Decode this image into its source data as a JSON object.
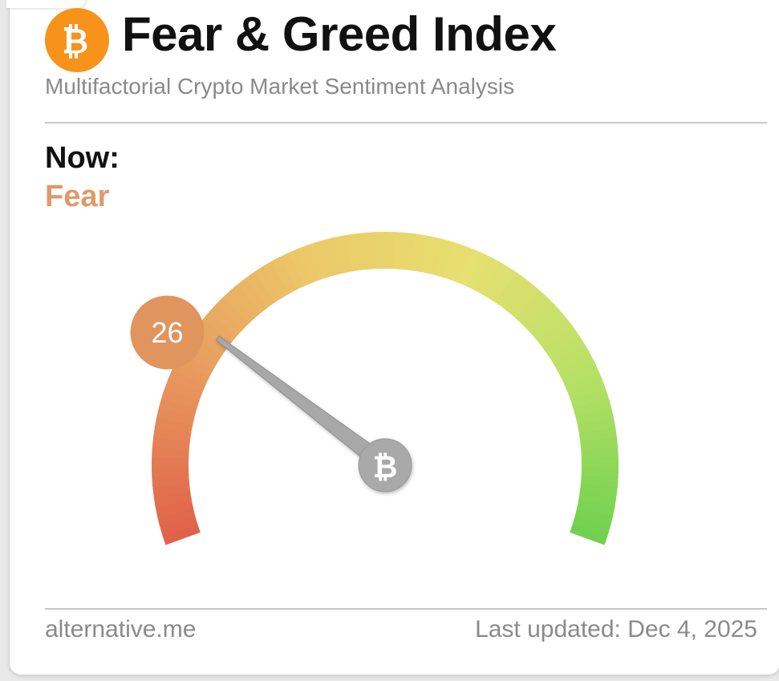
{
  "header": {
    "title": "Fear & Greed Index",
    "subtitle": "Multifactorial Crypto Market Sentiment Analysis",
    "logo_icon": "bitcoin-icon",
    "logo_color": "#f7931a"
  },
  "now": {
    "label": "Now:",
    "classification": "Fear",
    "classification_color": "#e0996a"
  },
  "chart_data": {
    "type": "gauge",
    "value": 26,
    "value_label": "26",
    "min": 0,
    "max": 100,
    "badge_color": "#e0945e",
    "gradient_stops": [
      "#e0604a",
      "#e8985e",
      "#ecc768",
      "#e6e070",
      "#b8e066",
      "#6fd04e"
    ],
    "center_icon": "bitcoin-icon"
  },
  "footer": {
    "source": "alternative.me",
    "last_updated": "Last updated: Dec 4, 2025"
  }
}
